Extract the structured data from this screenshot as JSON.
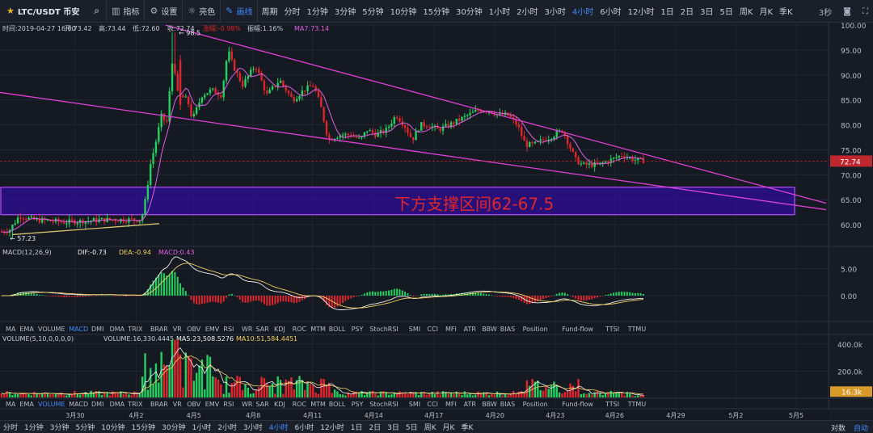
{
  "toolbar": {
    "symbol": "LTC/USDT 币安",
    "tools": [
      {
        "icon": "bar-chart-icon",
        "glyph": "▥",
        "label": "指标",
        "active": false
      },
      {
        "icon": "gear-icon",
        "glyph": "⚙",
        "label": "设置",
        "active": false
      },
      {
        "icon": "sun-icon",
        "glyph": "☼",
        "label": "亮色",
        "active": false
      },
      {
        "icon": "pencil-icon",
        "glyph": "✎",
        "label": "画线",
        "active": true
      }
    ],
    "periods_label": "周期",
    "periods": [
      "分时",
      "1分钟",
      "3分钟",
      "5分钟",
      "10分钟",
      "15分钟",
      "30分钟",
      "1小时",
      "2小时",
      "3小时",
      "4小时",
      "6小时",
      "12小时",
      "1日",
      "2日",
      "3日",
      "5日",
      "周K",
      "月K",
      "季K"
    ],
    "active_period": "4小时",
    "countdown": "3秒"
  },
  "ohlc_info": {
    "time": "时间:2019-04-27 16:00",
    "open": "开:73.42",
    "high": "高:73.44",
    "low": "低:72.60",
    "close": "收:72.74",
    "change": "涨幅:-0.98%",
    "amplitude": "振幅:1.16%",
    "ma": "MA7:73.14"
  },
  "annotation": "下方支撑区间62-67.5",
  "macd_info": {
    "title": "MACD(12,26,9)",
    "dif": "DIF:-0.73",
    "dea": "DEA:-0.94",
    "macd": "MACD:0.43"
  },
  "volume_info": {
    "title": "VOLUME(5,10,0,0,0,0)",
    "volume": "VOLUME:16,330.4445",
    "ma5": "MA5:23,508.5276",
    "ma10": "MA10:51,584.4451"
  },
  "indicator_tabs": [
    "MA",
    "EMA",
    "VOLUME",
    "MACD",
    "DMI",
    "DMA",
    "TRIX",
    "BRAR",
    "VR",
    "OBV",
    "EMV",
    "RSI",
    "WR",
    "SAR",
    "KDJ",
    "ROC",
    "MTM",
    "BOLL",
    "PSY",
    "StochRSI",
    "SMI",
    "CCI",
    "MFI",
    "ATR",
    "BBW",
    "BIAS",
    "Position",
    "Fund-flow",
    "TTSI",
    "TTMU"
  ],
  "active_tab_1": "MACD",
  "active_tab_2": "VOLUME",
  "bottom_bar": {
    "periods": [
      "分时",
      "1分钟",
      "3分钟",
      "5分钟",
      "10分钟",
      "15分钟",
      "30分钟",
      "1小时",
      "2小时",
      "3小时",
      "4小时",
      "6小时",
      "12小时",
      "1日",
      "2日",
      "3日",
      "5日",
      "周K",
      "月K",
      "季K"
    ],
    "active": "4小时",
    "log_label": "对数",
    "auto_label": "自动"
  },
  "colors": {
    "up": "#23d160",
    "down": "#e0262d",
    "trendline": "#e040d8",
    "zone_fill": "#2a0f8a",
    "zone_border": "#b74dff",
    "ma_line": "#e060e0",
    "dif_line": "#f0f0f0",
    "dea_line": "#f0d060",
    "price_tag": "#c0262d",
    "vol_tag": "#d89b2a",
    "accent": "#3d8bfd"
  },
  "chart_data": {
    "type": "candlestick",
    "xlabels": [
      "3月30",
      "4月2",
      "4月5",
      "4月8",
      "4月11",
      "4月14",
      "4月17",
      "4月20",
      "4月23",
      "4月26",
      "4月29",
      "5月2",
      "5月5"
    ],
    "price_axis": {
      "ticks": [
        "100.00",
        "95.00",
        "90.00",
        "85.00",
        "80.00",
        "75.00",
        "70.00",
        "65.00",
        "60.00"
      ],
      "min": 55.8,
      "max": 100.5
    },
    "last_price": "72.74",
    "high_marker": "98.5",
    "low_marker": "57.23",
    "macd_axis": {
      "ticks": [
        "5.00",
        "0.00"
      ],
      "min": -4.8,
      "max": 9.0
    },
    "volume_axis": {
      "ticks": [
        "400.0k",
        "200.0k"
      ],
      "min": 0,
      "max": 470000
    },
    "last_volume": "16.3k",
    "price_trendlines": [
      {
        "x": [
          0,
          1022
        ],
        "y": [
          86.5,
          63.0
        ]
      },
      {
        "x": [
          205,
          1022
        ],
        "y": [
          100.0,
          64.3
        ]
      },
      {
        "x": [
          15,
          197
        ],
        "y": [
          58.0,
          60.2
        ]
      }
    ],
    "support_zone": [
      62.0,
      67.5
    ]
  }
}
